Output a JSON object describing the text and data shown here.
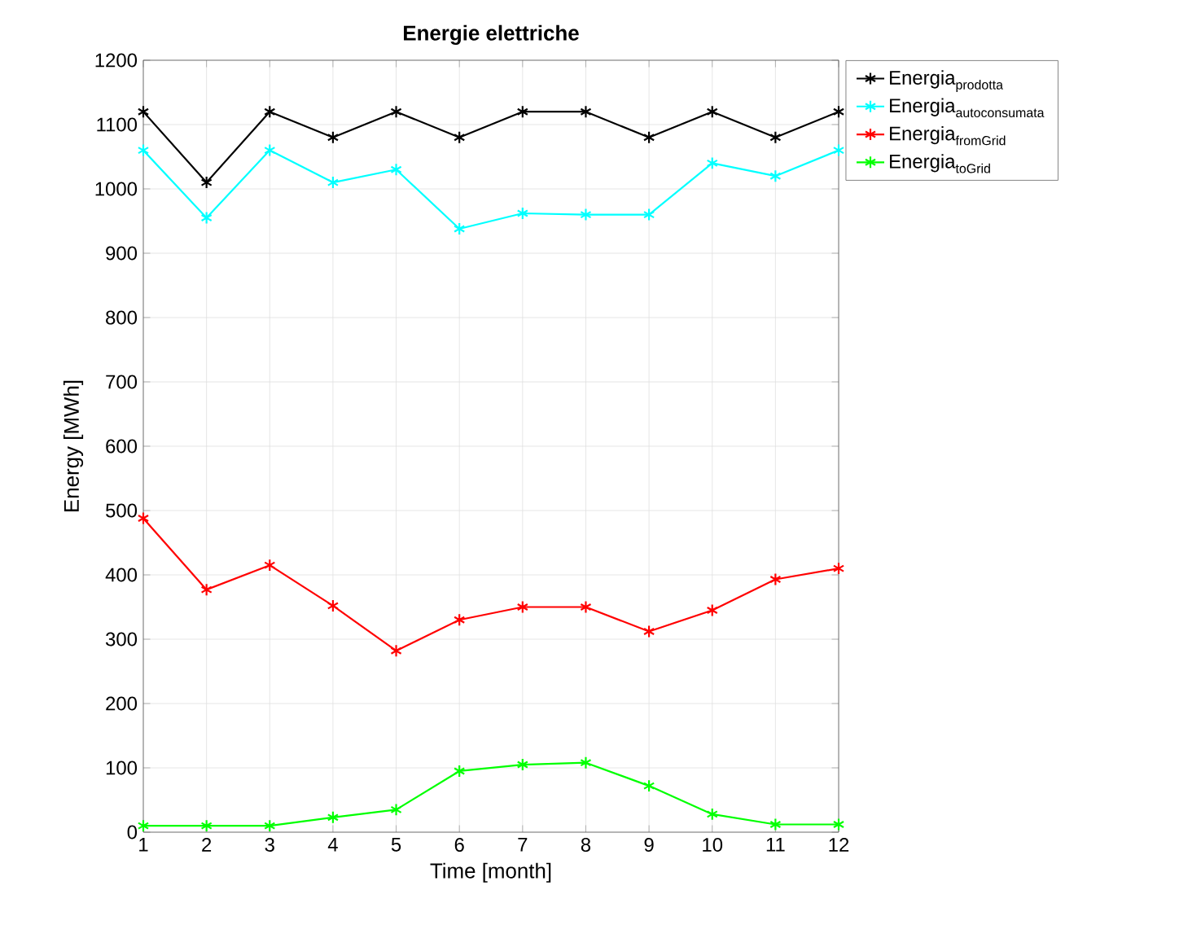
{
  "chart_data": {
    "type": "line",
    "title": "Energie elettriche",
    "xlabel": "Time [month]",
    "ylabel": "Energy [MWh]",
    "x": [
      1,
      2,
      3,
      4,
      5,
      6,
      7,
      8,
      9,
      10,
      11,
      12
    ],
    "series": [
      {
        "name": "\\text{Energia}_{\\text{prodotta}}",
        "color": "#000000",
        "values": [
          1120,
          1010,
          1120,
          1080,
          1120,
          1080,
          1120,
          1120,
          1080,
          1120,
          1080,
          1120
        ]
      },
      {
        "name": "\\text{Energia}_{\\text{autoconsumata}}",
        "color": "#00ffff",
        "values": [
          1060,
          955,
          1060,
          1010,
          1030,
          938,
          962,
          960,
          960,
          1040,
          1020,
          1060
        ]
      },
      {
        "name": "\\text{Energia}_{\\text{fromGrid}}",
        "color": "#ff0000",
        "values": [
          488,
          377,
          415,
          352,
          282,
          330,
          350,
          350,
          312,
          345,
          393,
          410
        ]
      },
      {
        "name": "\\text{Energia}_{\\text{toGrid}}",
        "color": "#00ff00",
        "values": [
          10,
          10,
          10,
          23,
          35,
          95,
          105,
          108,
          72,
          28,
          12,
          12
        ]
      }
    ],
    "xlim": [
      1,
      12
    ],
    "xticks": [
      1,
      2,
      3,
      4,
      5,
      6,
      7,
      8,
      9,
      10,
      11,
      12
    ],
    "ylim": [
      0,
      1200
    ],
    "yticks": [
      0,
      100,
      200,
      300,
      400,
      500,
      600,
      700,
      800,
      900,
      1000,
      1100,
      1200
    ],
    "grid": true,
    "legend": "top right",
    "marker": "cross",
    "line_style": "solid"
  }
}
